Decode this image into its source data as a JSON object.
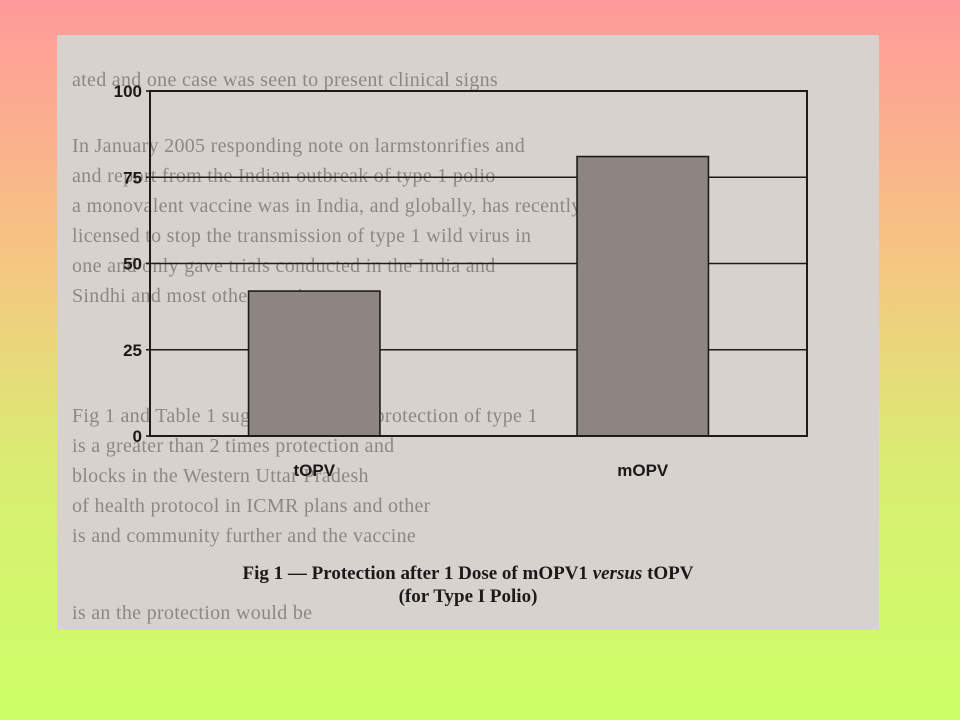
{
  "chart_data": {
    "type": "bar",
    "categories": [
      "tOPV",
      "mOPV"
    ],
    "values": [
      42,
      81
    ],
    "ylim": [
      0,
      100
    ],
    "yticks": [
      0,
      25,
      50,
      75,
      100
    ],
    "grid": true,
    "colors": {
      "bar": "#8c8582",
      "frame": "#1e1b1a"
    },
    "caption": {
      "part1": "Fig 1 — Protection after 1 Dose of mOPV1 ",
      "italic": "versus",
      "part2": " tOPV",
      "line2": "(for Type I Polio)"
    }
  },
  "background_text": [
    "ated and one case was seen to present clinical signs",
    "In January 2005 responding note on larmstonrifies and",
    "and report from the Indian outbreak of type 1 polio",
    "a monovalent vaccine was in India, and globally, has recently",
    "licensed to stop the transmission of type 1 wild virus in",
    "one and only gave trials conducted in the India and",
    "Sindhi and most other vaccine",
    "Fig 1 and Table 1 suggests a greater protection of type 1",
    "is a greater than 2 times protection and",
    "blocks in the Western Uttar Pradesh",
    "of health protocol in ICMR plans and other",
    "is and community further and the vaccine",
    "is an the protection would be"
  ]
}
